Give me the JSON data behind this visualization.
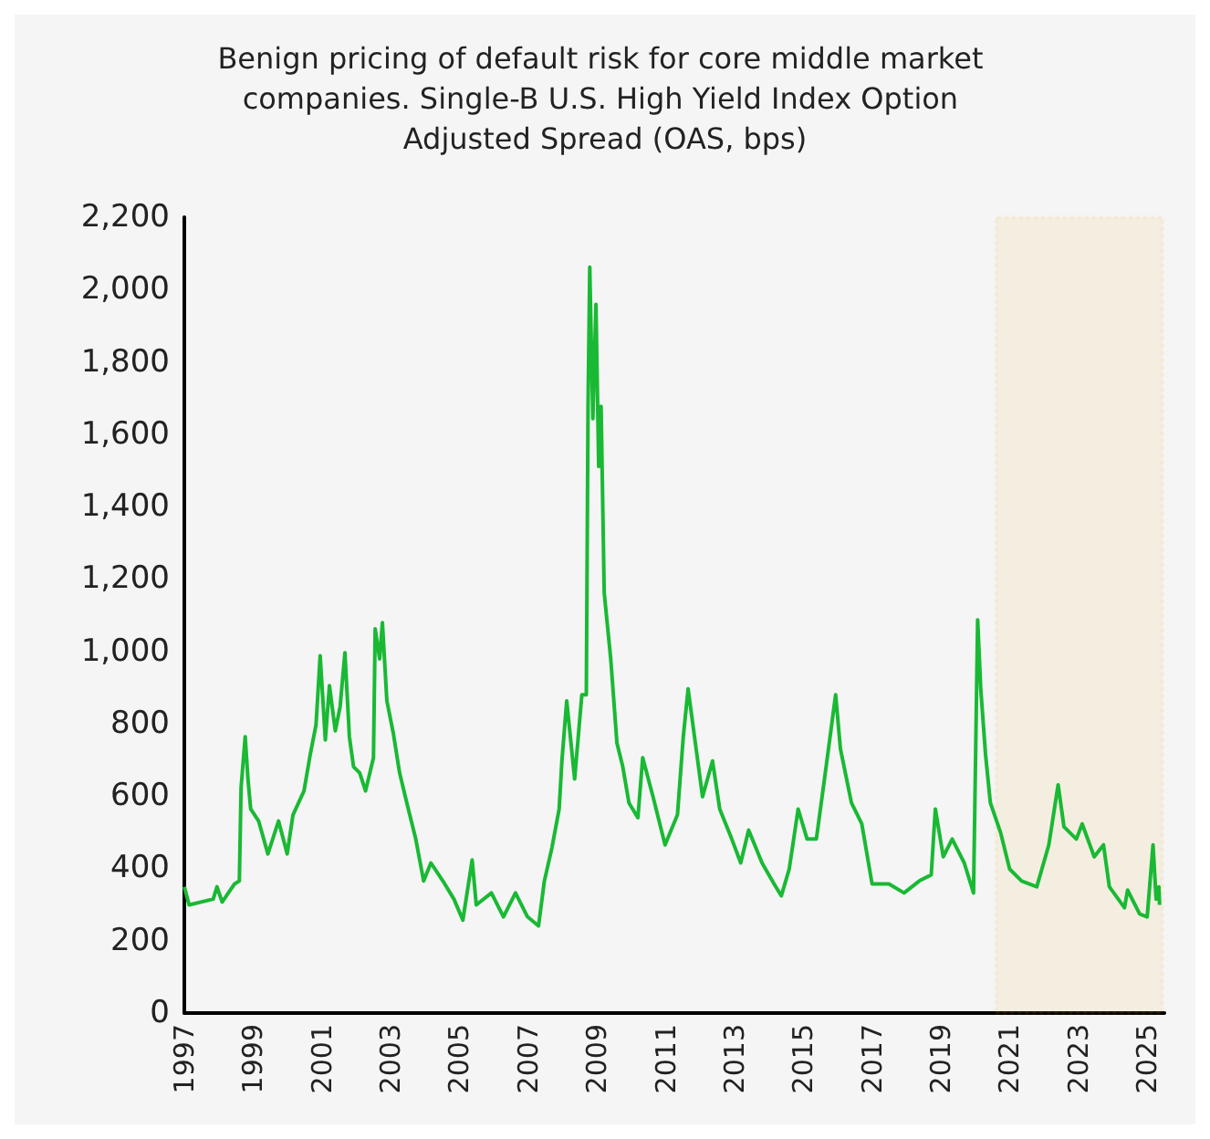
{
  "chart_data": {
    "type": "line",
    "title": "Benign pricing of default risk for core middle market companies. Single-B U.S. High Yield Index Option Adjusted Spread (OAS, bps)",
    "xlim": [
      1997,
      2025.5
    ],
    "xticks": [
      1997,
      1999,
      2001,
      2003,
      2005,
      2007,
      2009,
      2011,
      2013,
      2015,
      2017,
      2019,
      2021,
      2023,
      2025
    ],
    "ylim": [
      0,
      2200
    ],
    "yticks": [
      0,
      200,
      400,
      600,
      800,
      {
        "value": 1000,
        "label": "1,000"
      },
      {
        "value": 1200,
        "label": "1,200"
      },
      {
        "value": 1400,
        "label": "1,400"
      },
      {
        "value": 1600,
        "label": "1,600"
      },
      {
        "value": 1800,
        "label": "1,800"
      },
      {
        "value": 2000,
        "label": "2,000"
      },
      {
        "value": 2200,
        "label": "2,200"
      }
    ],
    "grid": false,
    "marker": "none",
    "line_style": "solid",
    "bands": [
      {
        "axis": "x",
        "from": 2020.6,
        "to": 2025.45,
        "color": "#f5a800"
      }
    ],
    "series": [
      {
        "color": "#19b934",
        "x": [
          1997.0,
          1997.14,
          1997.84,
          1997.95,
          1998.1,
          1998.46,
          1998.6,
          1998.65,
          1998.77,
          1998.85,
          1998.93,
          1999.16,
          1999.43,
          1999.74,
          1999.99,
          2000.16,
          2000.48,
          2000.66,
          2000.83,
          2000.95,
          2001.1,
          2001.22,
          2001.39,
          2001.53,
          2001.67,
          2001.8,
          2001.92,
          2002.1,
          2002.27,
          2002.5,
          2002.55,
          2002.68,
          2002.76,
          2002.89,
          2003.08,
          2003.26,
          2003.47,
          2003.73,
          2003.96,
          2004.17,
          2004.52,
          2004.84,
          2005.1,
          2005.37,
          2005.49,
          2005.93,
          2006.28,
          2006.63,
          2006.98,
          2007.3,
          2007.47,
          2007.69,
          2007.9,
          2007.98,
          2008.12,
          2008.35,
          2008.56,
          2008.69,
          2008.74,
          2008.79,
          2008.88,
          2008.97,
          2009.05,
          2009.12,
          2009.21,
          2009.23,
          2009.4,
          2009.58,
          2009.75,
          2009.93,
          2010.19,
          2010.33,
          2010.63,
          2010.98,
          2011.34,
          2011.51,
          2011.65,
          2011.86,
          2012.07,
          2012.36,
          2012.57,
          2012.92,
          2013.18,
          2013.41,
          2013.8,
          2014.15,
          2014.36,
          2014.59,
          2014.85,
          2015.11,
          2015.38,
          2015.64,
          2015.94,
          2016.08,
          2016.4,
          2016.7,
          2017.0,
          2017.49,
          2017.93,
          2018.37,
          2018.72,
          2018.84,
          2019.07,
          2019.33,
          2019.68,
          2019.95,
          2020.07,
          2020.16,
          2020.3,
          2020.44,
          2020.74,
          2021.0,
          2021.35,
          2021.79,
          2022.14,
          2022.41,
          2022.58,
          2022.94,
          2023.11,
          2023.46,
          2023.73,
          2023.9,
          2024.34,
          2024.43,
          2024.78,
          2025.0,
          2025.17,
          2025.26,
          2025.34,
          2025.36
        ],
        "values": [
          349,
          299,
          315,
          349,
          307,
          357,
          365,
          622,
          764,
          647,
          564,
          531,
          440,
          531,
          440,
          548,
          614,
          714,
          797,
          988,
          755,
          905,
          780,
          847,
          996,
          764,
          681,
          664,
          614,
          706,
          1062,
          979,
          1079,
          863,
          772,
          664,
          581,
          481,
          365,
          415,
          365,
          315,
          257,
          423,
          299,
          332,
          266,
          332,
          266,
          241,
          365,
          457,
          564,
          697,
          863,
          647,
          880,
          880,
          1677,
          2062,
          1643,
          1959,
          1511,
          1677,
          1162,
          1162,
          979,
          747,
          681,
          581,
          540,
          706,
          598,
          465,
          548,
          764,
          896,
          747,
          598,
          697,
          564,
          481,
          415,
          506,
          415,
          357,
          324,
          398,
          564,
          481,
          481,
          664,
          880,
          730,
          581,
          523,
          357,
          357,
          332,
          365,
          382,
          564,
          432,
          481,
          415,
          332,
          1087,
          896,
          714,
          581,
          498,
          398,
          365,
          349,
          465,
          631,
          515,
          481,
          523,
          432,
          465,
          349,
          291,
          340,
          274,
          266,
          465,
          315,
          349,
          299
        ]
      }
    ]
  }
}
